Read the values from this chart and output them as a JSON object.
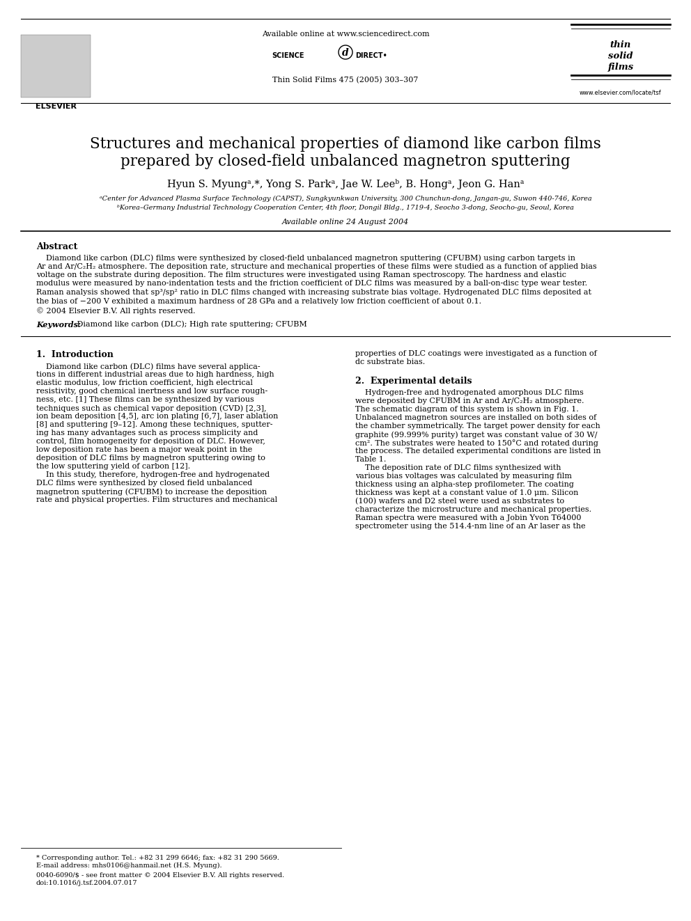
{
  "bg_color": "#ffffff",
  "header_url": "Available online at www.sciencedirect.com",
  "journal_ref": "Thin Solid Films 475 (2005) 303–307",
  "title_line1": "Structures and mechanical properties of diamond like carbon films",
  "title_line2": "prepared by closed-field unbalanced magnetron sputtering",
  "authors": "Hyun S. Myungᵃ,*, Yong S. Parkᵃ, Jae W. Leeᵇ, B. Hongᵃ, Jeon G. Hanᵃ",
  "affil1": "ᵃCenter for Advanced Plasma Surface Technology (CAPST), Sungkyunkwan University, 300 Chunchun-dong, Jangan-gu, Suwon 440-746, Korea",
  "affil2": "ᵇKorea–Germany Industrial Technology Cooperation Center, 4th floor, Dongil Bldg., 1719-4, Seocho 3-dong, Seocho-gu, Seoul, Korea",
  "available_online": "Available online 24 August 2004",
  "abstract_title": "Abstract",
  "abstract_lines": [
    "    Diamond like carbon (DLC) films were synthesized by closed-field unbalanced magnetron sputtering (CFUBM) using carbon targets in",
    "Ar and Ar/C₂H₂ atmosphere. The deposition rate, structure and mechanical properties of these films were studied as a function of applied bias",
    "voltage on the substrate during deposition. The film structures were investigated using Raman spectroscopy. The hardness and elastic",
    "modulus were measured by nano-indentation tests and the friction coefficient of DLC films was measured by a ball-on-disc type wear tester.",
    "Raman analysis showed that sp³/sp² ratio in DLC films changed with increasing substrate bias voltage. Hydrogenated DLC films deposited at",
    "the bias of −200 V exhibited a maximum hardness of 28 GPa and a relatively low friction coefficient of about 0.1."
  ],
  "copyright": "© 2004 Elsevier B.V. All rights reserved.",
  "keywords_label": "Keywords:",
  "keywords_text": " Diamond like carbon (DLC); High rate sputtering; CFUBM",
  "intro_title": "1.  Introduction",
  "intro_col1": [
    "    Diamond like carbon (DLC) films have several applica-",
    "tions in different industrial areas due to high hardness, high",
    "elastic modulus, low friction coefficient, high electrical",
    "resistivity, good chemical inertness and low surface rough-",
    "ness, etc. [1] These films can be synthesized by various",
    "techniques such as chemical vapor deposition (CVD) [2,3],",
    "ion beam deposition [4,5], arc ion plating [6,7], laser ablation",
    "[8] and sputtering [9–12]. Among these techniques, sputter-",
    "ing has many advantages such as process simplicity and",
    "control, film homogeneity for deposition of DLC. However,",
    "low deposition rate has been a major weak point in the",
    "deposition of DLC films by magnetron sputtering owing to",
    "the low sputtering yield of carbon [12].",
    "    In this study, therefore, hydrogen-free and hydrogenated",
    "DLC films were synthesized by closed field unbalanced",
    "magnetron sputtering (CFUBM) to increase the deposition",
    "rate and physical properties. Film structures and mechanical"
  ],
  "intro_col2_top": [
    "properties of DLC coatings were investigated as a function of",
    "dc substrate bias."
  ],
  "exp_title": "2.  Experimental details",
  "exp_col2": [
    "    Hydrogen-free and hydrogenated amorphous DLC films",
    "were deposited by CFUBM in Ar and Ar/C₂H₂ atmosphere.",
    "The schematic diagram of this system is shown in Fig. 1.",
    "Unbalanced magnetron sources are installed on both sides of",
    "the chamber symmetrically. The target power density for each",
    "graphite (99.999% purity) target was constant value of 30 W/",
    "cm². The substrates were heated to 150°C and rotated during",
    "the process. The detailed experimental conditions are listed in",
    "Table 1.",
    "    The deposition rate of DLC films synthesized with",
    "various bias voltages was calculated by measuring film",
    "thickness using an alpha-step profilometer. The coating",
    "thickness was kept at a constant value of 1.0 μm. Silicon",
    "(100) wafers and D2 steel were used as substrates to",
    "characterize the microstructure and mechanical properties.",
    "Raman spectra were measured with a Jobin Yvon T64000",
    "spectrometer using the 514.4-nm line of an Ar laser as the"
  ],
  "footnote_star": "* Corresponding author. Tel.: +82 31 299 6646; fax: +82 31 290 5669.",
  "footnote_email": "E-mail address: mhs0106@hanmail.net (H.S. Myung).",
  "footnote_issn": "0040-6090/$ - see front matter © 2004 Elsevier B.V. All rights reserved.",
  "footnote_doi": "doi:10.1016/j.tsf.2004.07.017"
}
